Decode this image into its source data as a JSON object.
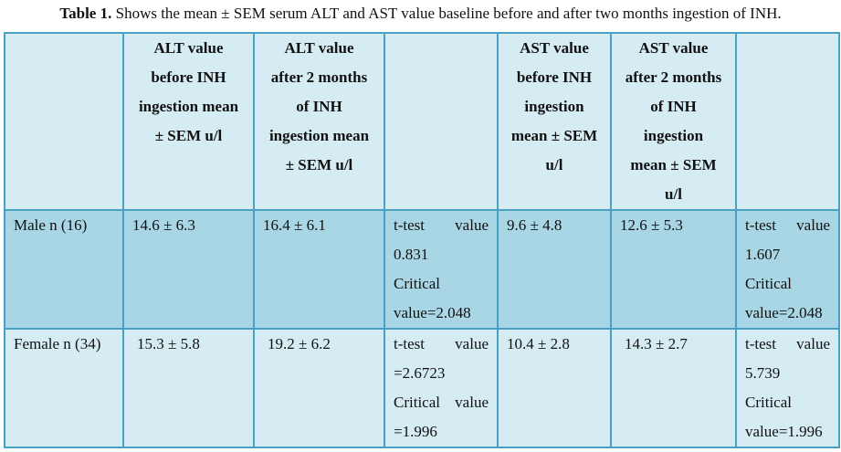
{
  "caption": {
    "label": "Table 1.",
    "text": "Shows the mean ± SEM serum ALT and AST value baseline before and after two months ingestion of INH."
  },
  "table": {
    "headers": [
      "",
      [
        "ALT value",
        "before INH",
        "ingestion mean",
        "± SEM u/l"
      ],
      [
        "ALT value",
        "after 2 months",
        "of INH",
        "ingestion mean",
        "± SEM u/l"
      ],
      "",
      [
        "AST value",
        "before INH",
        "ingestion",
        "mean ± SEM",
        "u/l"
      ],
      [
        "AST value",
        "after 2 months",
        "of INH",
        "ingestion",
        "mean ± SEM",
        "u/l"
      ],
      ""
    ],
    "rows": [
      {
        "group": "Male n (16)",
        "alt_before": "14.6 ± 6.3",
        "alt_after": "16.4 ± 6.1",
        "alt_test": [
          "t-test value",
          "0.831",
          "Critical",
          "value=2.048"
        ],
        "ast_before": "9.6 ± 4.8",
        "ast_after": "12.6 ± 5.3",
        "ast_test": [
          "t-test value",
          "1.607",
          "Critical",
          "value=2.048"
        ]
      },
      {
        "group": "Female n (34)",
        "alt_before": "15.3 ± 5.8",
        "alt_after": "19.2 ± 6.2",
        "alt_test": [
          "t-test value",
          "=2.6723",
          "Critical value",
          "=1.996"
        ],
        "ast_before": "10.4 ± 2.8",
        "ast_after": "14.3 ± 2.7",
        "ast_test": [
          "t-test value",
          "5.739",
          "Critical",
          "value=1.996"
        ]
      }
    ]
  }
}
